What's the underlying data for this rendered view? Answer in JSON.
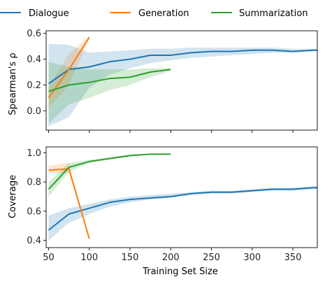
{
  "legend": {
    "placement": "top",
    "entries": [
      {
        "name": "Dialogue",
        "color": "#1f77b4"
      },
      {
        "name": "Generation",
        "color": "#ff7f0e"
      },
      {
        "name": "Summarization",
        "color": "#2ca02c"
      }
    ]
  },
  "chart_data": [
    {
      "type": "line",
      "title": "",
      "xlabel": "",
      "ylabel": "Spearman's ρ",
      "xlim": [
        47,
        380
      ],
      "ylim": [
        -0.15,
        0.62
      ],
      "xticks": [
        50,
        100,
        150,
        200,
        250,
        300,
        350
      ],
      "show_xtick_labels": false,
      "yticks": [
        0.0,
        0.2,
        0.4,
        0.6
      ],
      "ytick_labels": [
        "0.0",
        "0.2",
        "0.4",
        "0.6"
      ],
      "grid": false,
      "series": [
        {
          "name": "Dialogue",
          "color": "#1f77b4",
          "x": [
            50,
            75,
            100,
            125,
            150,
            175,
            200,
            225,
            250,
            275,
            300,
            325,
            350,
            375,
            380
          ],
          "y": [
            0.21,
            0.32,
            0.34,
            0.38,
            0.4,
            0.43,
            0.43,
            0.45,
            0.46,
            0.46,
            0.47,
            0.47,
            0.46,
            0.47,
            0.47
          ],
          "lower": [
            -0.12,
            -0.05,
            0.18,
            0.28,
            0.33,
            0.37,
            0.39,
            0.41,
            0.42,
            0.43,
            0.44,
            0.45,
            0.45,
            0.46,
            0.46
          ],
          "upper": [
            0.52,
            0.51,
            0.45,
            0.46,
            0.47,
            0.48,
            0.48,
            0.49,
            0.49,
            0.49,
            0.49,
            0.49,
            0.48,
            0.48,
            0.48
          ]
        },
        {
          "name": "Generation",
          "color": "#ff7f0e",
          "x": [
            50,
            75,
            100
          ],
          "y": [
            0.1,
            0.32,
            0.57
          ],
          "lower": [
            0.02,
            0.2,
            0.56
          ],
          "upper": [
            0.18,
            0.44,
            0.58
          ]
        },
        {
          "name": "Summarization",
          "color": "#2ca02c",
          "x": [
            50,
            75,
            100,
            125,
            150,
            175,
            200
          ],
          "y": [
            0.15,
            0.2,
            0.22,
            0.25,
            0.26,
            0.3,
            0.32
          ],
          "lower": [
            -0.1,
            0.05,
            0.1,
            0.16,
            0.2,
            0.26,
            0.31
          ],
          "upper": [
            0.38,
            0.34,
            0.32,
            0.32,
            0.32,
            0.33,
            0.33
          ]
        }
      ]
    },
    {
      "type": "line",
      "title": "",
      "xlabel": "Training Set Size",
      "ylabel": "Coverage",
      "xlim": [
        47,
        380
      ],
      "ylim": [
        0.35,
        1.04
      ],
      "xticks": [
        50,
        100,
        150,
        200,
        250,
        300,
        350
      ],
      "xtick_labels": [
        "50",
        "100",
        "150",
        "200",
        "250",
        "300",
        "350"
      ],
      "show_xtick_labels": true,
      "yticks": [
        0.4,
        0.6,
        0.8,
        1.0
      ],
      "ytick_labels": [
        "0.4",
        "0.6",
        "0.8",
        "1.0"
      ],
      "grid": false,
      "series": [
        {
          "name": "Dialogue",
          "color": "#1f77b4",
          "x": [
            50,
            75,
            100,
            125,
            150,
            175,
            200,
            225,
            250,
            275,
            300,
            325,
            350,
            375,
            380
          ],
          "y": [
            0.47,
            0.58,
            0.62,
            0.66,
            0.68,
            0.69,
            0.7,
            0.72,
            0.73,
            0.73,
            0.74,
            0.75,
            0.75,
            0.76,
            0.76
          ],
          "lower": [
            0.4,
            0.52,
            0.58,
            0.63,
            0.66,
            0.68,
            0.69,
            0.71,
            0.72,
            0.72,
            0.73,
            0.74,
            0.74,
            0.75,
            0.75
          ],
          "upper": [
            0.57,
            0.62,
            0.65,
            0.68,
            0.7,
            0.71,
            0.72,
            0.73,
            0.74,
            0.74,
            0.75,
            0.76,
            0.76,
            0.77,
            0.77
          ]
        },
        {
          "name": "Generation",
          "color": "#ff7f0e",
          "x": [
            50,
            75,
            100
          ],
          "y": [
            0.88,
            0.89,
            0.41
          ],
          "lower": [
            0.86,
            0.86,
            0.41
          ],
          "upper": [
            0.91,
            0.93,
            0.41
          ]
        },
        {
          "name": "Summarization",
          "color": "#2ca02c",
          "x": [
            50,
            75,
            100,
            125,
            150,
            175,
            200
          ],
          "y": [
            0.75,
            0.9,
            0.94,
            0.96,
            0.98,
            0.99,
            0.99
          ],
          "lower": [
            0.7,
            0.87,
            0.93,
            0.96,
            0.98,
            0.99,
            0.99
          ],
          "upper": [
            0.8,
            0.93,
            0.95,
            0.97,
            0.99,
            0.99,
            0.99
          ]
        }
      ]
    }
  ]
}
